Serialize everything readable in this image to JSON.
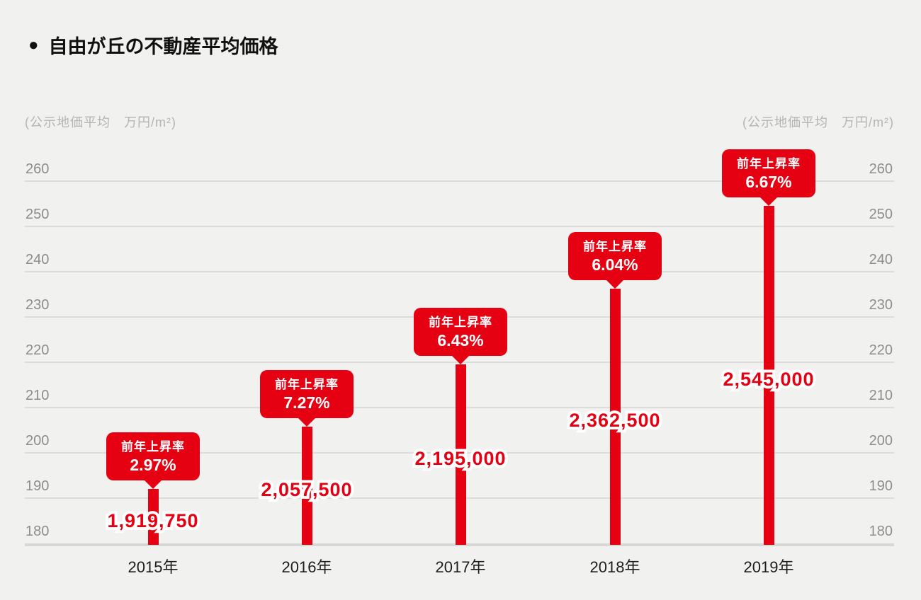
{
  "page": {
    "title_bullet": "●",
    "title": "自由が丘の不動産平均価格"
  },
  "axis": {
    "unit_label_left": "(公示地価平均　万円/m²)",
    "unit_label_right": "(公示地価平均　万円/m²)"
  },
  "chart_data": {
    "type": "bar",
    "title": "自由が丘の不動産平均価格",
    "ylabel": "公示地価平均 万円/m²",
    "ylim": [
      180,
      260
    ],
    "y_ticks": [
      180,
      190,
      200,
      210,
      220,
      230,
      240,
      250,
      260
    ],
    "grid": true,
    "legend": "none",
    "bar_color": "#e50012",
    "categories": [
      "2015年",
      "2016年",
      "2017年",
      "2018年",
      "2019年"
    ],
    "values_man_yen_per_sqm": [
      191.975,
      205.75,
      219.5,
      236.25,
      254.5
    ],
    "price_labels_yen": [
      "1,919,750",
      "2,057,500",
      "2,195,000",
      "2,362,500",
      "2,545,000"
    ],
    "yoy_rate_title": "前年上昇率",
    "yoy_rates": [
      "2.97%",
      "7.27%",
      "6.43%",
      "6.04%",
      "6.67%"
    ]
  }
}
